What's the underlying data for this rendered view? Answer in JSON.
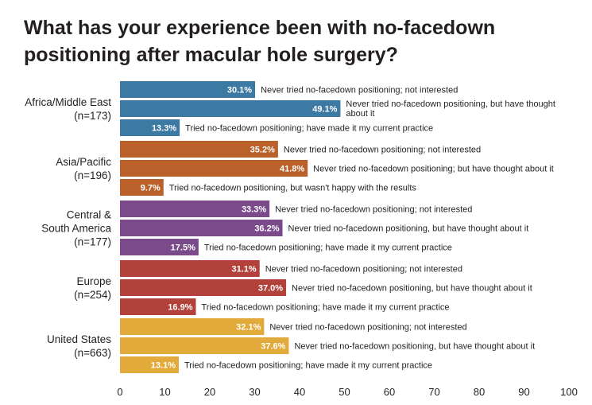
{
  "chart_data": {
    "type": "bar",
    "orientation": "horizontal",
    "title": "What has your experience been with no-facedown positioning after macular hole surgery?",
    "xlim": [
      0,
      100
    ],
    "xticks": [
      0,
      10,
      20,
      30,
      40,
      50,
      60,
      70,
      80,
      90,
      100
    ],
    "grid": false,
    "groups": [
      {
        "label_lines": [
          "Africa/Middle East",
          "(n=173)"
        ],
        "color": "#3d7aa3",
        "bars": [
          {
            "value": 30.1,
            "value_label": "30.1%",
            "desc_lines": [
              "Never tried no-facedown positioning; not interested"
            ]
          },
          {
            "value": 49.1,
            "value_label": "49.1%",
            "desc_lines": [
              "Never tried no-facedown positioning, but have thought",
              "about it"
            ]
          },
          {
            "value": 13.3,
            "value_label": "13.3%",
            "desc_lines": [
              "Tried no-facedown positioning; have made it my current practice"
            ]
          }
        ]
      },
      {
        "label_lines": [
          "Asia/Pacific",
          "(n=196)"
        ],
        "color": "#b9602b",
        "bars": [
          {
            "value": 35.2,
            "value_label": "35.2%",
            "desc_lines": [
              "Never tried no-facedown positioning; not interested"
            ]
          },
          {
            "value": 41.8,
            "value_label": "41.8%",
            "desc_lines": [
              "Never tried no-facedown positioning; but have thought about it"
            ]
          },
          {
            "value": 9.7,
            "value_label": "9.7%",
            "desc_lines": [
              "Tried no-facedown positioning, but wasn't happy with the results"
            ]
          }
        ]
      },
      {
        "label_lines": [
          "Central &",
          "South America",
          "(n=177)"
        ],
        "color": "#7a4a8a",
        "bars": [
          {
            "value": 33.3,
            "value_label": "33.3%",
            "desc_lines": [
              "Never tried no-facedown positioning; not interested"
            ]
          },
          {
            "value": 36.2,
            "value_label": "36.2%",
            "desc_lines": [
              "Never tried no-facedown positioning, but have thought about it"
            ]
          },
          {
            "value": 17.5,
            "value_label": "17.5%",
            "desc_lines": [
              "Tried no-facedown positioning; have made it my current practice"
            ]
          }
        ]
      },
      {
        "label_lines": [
          "Europe",
          "(n=254)"
        ],
        "color": "#b1413a",
        "bars": [
          {
            "value": 31.1,
            "value_label": "31.1%",
            "desc_lines": [
              "Never tried no-facedown positioning; not interested"
            ]
          },
          {
            "value": 37.0,
            "value_label": "37.0%",
            "desc_lines": [
              "Never tried no-facedown positioning, but have thought about it"
            ]
          },
          {
            "value": 16.9,
            "value_label": "16.9%",
            "desc_lines": [
              "Tried no-facedown positioning; have made it my current practice"
            ]
          }
        ]
      },
      {
        "label_lines": [
          "United States",
          "(n=663)"
        ],
        "color": "#e2aa3a",
        "bars": [
          {
            "value": 32.1,
            "value_label": "32.1%",
            "desc_lines": [
              "Never tried no-facedown positioning; not interested"
            ]
          },
          {
            "value": 37.6,
            "value_label": "37.6%",
            "desc_lines": [
              "Never tried no-facedown positioning, but have thought about it"
            ]
          },
          {
            "value": 13.1,
            "value_label": "13.1%",
            "desc_lines": [
              "Tried no-facedown positioning; have made it my current practice"
            ]
          }
        ]
      }
    ]
  }
}
